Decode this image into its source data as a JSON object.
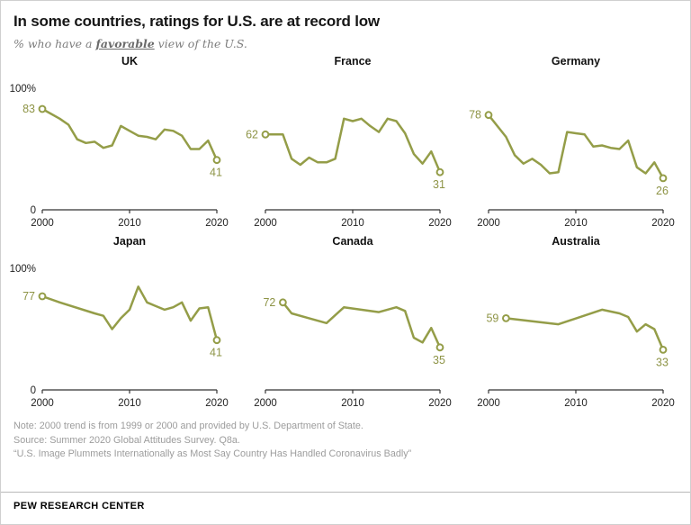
{
  "header": {
    "title": "In some countries, ratings for U.S. are at record low",
    "subtitle_prefix": "% who have a ",
    "subtitle_emphasis": "favorable",
    "subtitle_suffix": " view of the U.S."
  },
  "axis": {
    "y_top_label": "100%",
    "y_bottom_label": "0"
  },
  "colors": {
    "line": "#949d48",
    "value_label": "#8e9446",
    "axis": "#333333"
  },
  "chart_data": [
    {
      "type": "line",
      "title": "UK",
      "start_label": "83",
      "end_label": "41",
      "show_y_labels": true,
      "xlim": [
        2000,
        2020
      ],
      "ylim": [
        0,
        100
      ],
      "xticks": [
        2000,
        2010,
        2020
      ],
      "x": [
        2000,
        2002,
        2003,
        2004,
        2005,
        2006,
        2007,
        2008,
        2009,
        2010,
        2011,
        2012,
        2013,
        2014,
        2015,
        2016,
        2017,
        2018,
        2019,
        2020
      ],
      "values": [
        83,
        75,
        70,
        58,
        55,
        56,
        51,
        53,
        69,
        65,
        61,
        60,
        58,
        66,
        65,
        61,
        50,
        50,
        57,
        41
      ]
    },
    {
      "type": "line",
      "title": "France",
      "start_label": "62",
      "end_label": "31",
      "show_y_labels": false,
      "xlim": [
        2000,
        2020
      ],
      "ylim": [
        0,
        100
      ],
      "xticks": [
        2000,
        2010,
        2020
      ],
      "x": [
        2000,
        2002,
        2003,
        2004,
        2005,
        2006,
        2007,
        2008,
        2009,
        2010,
        2011,
        2012,
        2013,
        2014,
        2015,
        2016,
        2017,
        2018,
        2019,
        2020
      ],
      "values": [
        62,
        62,
        42,
        37,
        43,
        39,
        39,
        42,
        75,
        73,
        75,
        69,
        64,
        75,
        73,
        63,
        46,
        38,
        48,
        31
      ]
    },
    {
      "type": "line",
      "title": "Germany",
      "start_label": "78",
      "end_label": "26",
      "show_y_labels": false,
      "xlim": [
        2000,
        2020
      ],
      "ylim": [
        0,
        100
      ],
      "xticks": [
        2000,
        2010,
        2020
      ],
      "x": [
        2000,
        2002,
        2003,
        2004,
        2005,
        2006,
        2007,
        2008,
        2009,
        2010,
        2011,
        2012,
        2013,
        2014,
        2015,
        2016,
        2017,
        2018,
        2019,
        2020
      ],
      "values": [
        78,
        60,
        45,
        38,
        42,
        37,
        30,
        31,
        64,
        63,
        62,
        52,
        53,
        51,
        50,
        57,
        35,
        30,
        39,
        26
      ]
    },
    {
      "type": "line",
      "title": "Japan",
      "start_label": "77",
      "end_label": "41",
      "show_y_labels": true,
      "xlim": [
        2000,
        2020
      ],
      "ylim": [
        0,
        100
      ],
      "xticks": [
        2000,
        2010,
        2020
      ],
      "x": [
        2000,
        2002,
        2006,
        2007,
        2008,
        2009,
        2010,
        2011,
        2012,
        2013,
        2014,
        2015,
        2016,
        2017,
        2018,
        2019,
        2020
      ],
      "values": [
        77,
        72,
        63,
        61,
        50,
        59,
        66,
        85,
        72,
        69,
        66,
        68,
        72,
        57,
        67,
        68,
        41
      ]
    },
    {
      "type": "line",
      "title": "Canada",
      "start_label": "72",
      "end_label": "35",
      "show_y_labels": false,
      "xlim": [
        2000,
        2020
      ],
      "ylim": [
        0,
        100
      ],
      "xticks": [
        2000,
        2010,
        2020
      ],
      "x": [
        2002,
        2003,
        2005,
        2007,
        2009,
        2013,
        2015,
        2016,
        2017,
        2018,
        2019,
        2020
      ],
      "values": [
        72,
        63,
        59,
        55,
        68,
        64,
        68,
        65,
        43,
        39,
        51,
        35
      ]
    },
    {
      "type": "line",
      "title": "Australia",
      "start_label": "59",
      "end_label": "33",
      "show_y_labels": false,
      "xlim": [
        2000,
        2020
      ],
      "ylim": [
        0,
        100
      ],
      "xticks": [
        2000,
        2010,
        2020
      ],
      "x": [
        2002,
        2008,
        2013,
        2015,
        2016,
        2017,
        2018,
        2019,
        2020
      ],
      "values": [
        59,
        54,
        66,
        63,
        60,
        48,
        54,
        50,
        33
      ]
    }
  ],
  "footer": {
    "note": "Note: 2000 trend is from 1999 or 2000 and provided by U.S. Department of State.",
    "source": "Source: Summer 2020 Global Attitudes Survey. Q8a.",
    "report": "“U.S. Image Plummets Internationally as Most Say Country Has Handled Coronavirus Badly”",
    "brand": "PEW RESEARCH CENTER"
  }
}
